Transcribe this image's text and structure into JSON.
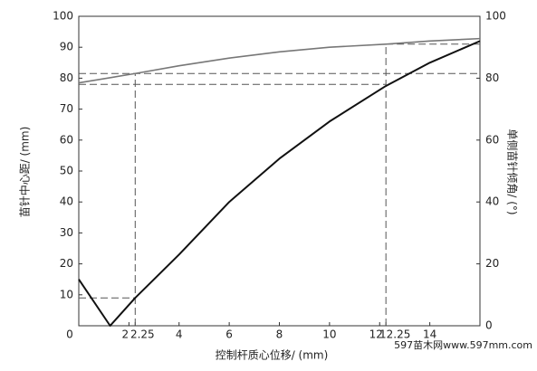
{
  "chart_data": {
    "type": "line",
    "xlabel": "控制杆质心位移/ (mm)",
    "ylabel": "苗针中心距/ (mm)",
    "y2label": "单侧苗针倾角/ (°)",
    "watermark": "597苗木网www.597mm.com",
    "xlim": [
      0,
      16
    ],
    "xticks": [
      0,
      2,
      2.25,
      4,
      6,
      8,
      10,
      12,
      12.25,
      14
    ],
    "ylim": [
      0,
      100
    ],
    "yticks": [
      10,
      20,
      30,
      40,
      50,
      60,
      70,
      80,
      90,
      100
    ],
    "y2lim": [
      0,
      100
    ],
    "y2ticks": [
      0,
      20,
      40,
      60,
      80,
      100
    ],
    "series": [
      {
        "name": "苗针中心距",
        "color": "#777777",
        "x": [
          0,
          2.25,
          4,
          6,
          8,
          10,
          12.25,
          14,
          16
        ],
        "values": [
          78.5,
          81.5,
          84,
          86.5,
          88.5,
          90,
          91,
          92,
          92.8
        ]
      },
      {
        "name": "单侧苗针倾角",
        "color": "#111111",
        "axis": "y2",
        "x": [
          0,
          1.25,
          2.25,
          4,
          6,
          8,
          10,
          12.25,
          14,
          16
        ],
        "values": [
          15,
          0,
          9,
          23,
          40,
          54,
          66,
          77.5,
          85,
          92
        ]
      }
    ],
    "guides": [
      {
        "x": [
          0,
          16
        ],
        "y": [
          81.5,
          81.5
        ]
      },
      {
        "x": [
          0,
          12.25
        ],
        "y": [
          78,
          78
        ]
      },
      {
        "x": [
          12.25,
          16
        ],
        "y": [
          91,
          91
        ]
      },
      {
        "x": [
          0,
          2.25
        ],
        "y": [
          9,
          9
        ]
      },
      {
        "x": [
          2.25,
          2.25
        ],
        "y": [
          0,
          81.5
        ]
      },
      {
        "x": [
          12.25,
          12.25
        ],
        "y": [
          0,
          91
        ]
      }
    ]
  }
}
